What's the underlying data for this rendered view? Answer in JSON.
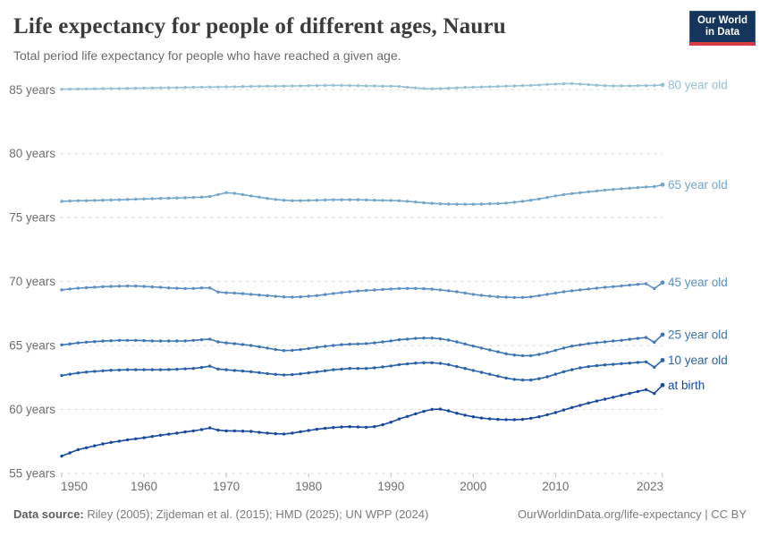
{
  "header": {
    "title": "Life expectancy for people of different ages, Nauru",
    "subtitle": "Total period life expectancy for people who have reached a given age.",
    "logo": {
      "line1": "Our World",
      "line2": "in Data",
      "bg_color": "#16355c",
      "accent_color": "#d93b43"
    }
  },
  "footer": {
    "data_source_label": "Data source:",
    "data_source_text": " Riley (2005); Zijdeman et al. (2015); HMD (2025); UN WPP (2024)",
    "link_text": "OurWorldinData.org/life-expectancy | CC BY"
  },
  "chart_data": {
    "type": "line",
    "title": "Life expectancy for people of different ages, Nauru",
    "subtitle": "Total period life expectancy for people who have reached a given age.",
    "unit": "years",
    "xlabel": "",
    "ylabel": "",
    "x_range": [
      1950,
      2023
    ],
    "ylim": [
      55,
      86
    ],
    "grid": true,
    "legend_position": "right-of-line-ends",
    "x_ticks": [
      1950,
      1960,
      1970,
      1980,
      1990,
      2000,
      2010,
      2023
    ],
    "y_ticks": [
      55,
      60,
      65,
      70,
      75,
      80,
      85
    ],
    "y_tick_suffix": " years",
    "x": [
      1950,
      1951,
      1952,
      1953,
      1954,
      1955,
      1956,
      1957,
      1958,
      1959,
      1960,
      1961,
      1962,
      1963,
      1964,
      1965,
      1966,
      1967,
      1968,
      1969,
      1970,
      1971,
      1972,
      1973,
      1974,
      1975,
      1976,
      1977,
      1978,
      1979,
      1980,
      1981,
      1982,
      1983,
      1984,
      1985,
      1986,
      1987,
      1988,
      1989,
      1990,
      1991,
      1992,
      1993,
      1994,
      1995,
      1996,
      1997,
      1998,
      1999,
      2000,
      2001,
      2002,
      2003,
      2004,
      2005,
      2006,
      2007,
      2008,
      2009,
      2010,
      2011,
      2012,
      2013,
      2014,
      2015,
      2016,
      2017,
      2018,
      2019,
      2020,
      2021,
      2022,
      2023
    ],
    "series": [
      {
        "name": "80 year old",
        "color": "#97c0d4",
        "values": [
          85.04,
          85.05,
          85.06,
          85.07,
          85.08,
          85.09,
          85.1,
          85.1,
          85.11,
          85.12,
          85.13,
          85.14,
          85.15,
          85.16,
          85.17,
          85.18,
          85.19,
          85.2,
          85.21,
          85.22,
          85.23,
          85.24,
          85.25,
          85.26,
          85.27,
          85.28,
          85.28,
          85.29,
          85.3,
          85.31,
          85.32,
          85.33,
          85.34,
          85.35,
          85.34,
          85.33,
          85.32,
          85.3,
          85.3,
          85.28,
          85.28,
          85.26,
          85.2,
          85.15,
          85.1,
          85.08,
          85.1,
          85.12,
          85.15,
          85.18,
          85.2,
          85.22,
          85.24,
          85.26,
          85.28,
          85.3,
          85.32,
          85.34,
          85.38,
          85.42,
          85.45,
          85.47,
          85.48,
          85.45,
          85.4,
          85.36,
          85.32,
          85.3,
          85.3,
          85.31,
          85.32,
          85.33,
          85.34,
          85.38
        ]
      },
      {
        "name": "65 year old",
        "color": "#74a6cc",
        "values": [
          76.28,
          76.3,
          76.32,
          76.33,
          76.35,
          76.36,
          76.38,
          76.4,
          76.42,
          76.44,
          76.46,
          76.48,
          76.5,
          76.52,
          76.54,
          76.55,
          76.58,
          76.6,
          76.65,
          76.8,
          76.95,
          76.9,
          76.8,
          76.7,
          76.6,
          76.5,
          76.42,
          76.36,
          76.33,
          76.33,
          76.35,
          76.36,
          76.38,
          76.4,
          76.4,
          76.4,
          76.4,
          76.38,
          76.36,
          76.35,
          76.34,
          76.32,
          76.28,
          76.22,
          76.16,
          76.12,
          76.08,
          76.06,
          76.05,
          76.05,
          76.05,
          76.06,
          76.08,
          76.1,
          76.14,
          76.2,
          76.28,
          76.36,
          76.46,
          76.58,
          76.7,
          76.8,
          76.88,
          76.95,
          77.02,
          77.08,
          77.15,
          77.2,
          77.26,
          77.3,
          77.35,
          77.4,
          77.42,
          77.58
        ]
      },
      {
        "name": "45 year old",
        "color": "#5a8ec3",
        "values": [
          69.35,
          69.42,
          69.48,
          69.52,
          69.56,
          69.6,
          69.62,
          69.64,
          69.65,
          69.65,
          69.62,
          69.58,
          69.55,
          69.5,
          69.47,
          69.45,
          69.46,
          69.5,
          69.5,
          69.18,
          69.12,
          69.1,
          69.05,
          69.0,
          68.95,
          68.9,
          68.84,
          68.8,
          68.78,
          68.8,
          68.85,
          68.9,
          68.98,
          69.06,
          69.14,
          69.2,
          69.26,
          69.3,
          69.34,
          69.38,
          69.42,
          69.45,
          69.46,
          69.46,
          69.44,
          69.4,
          69.35,
          69.28,
          69.2,
          69.1,
          69.0,
          68.92,
          68.86,
          68.8,
          68.77,
          68.75,
          68.76,
          68.8,
          68.9,
          69.0,
          69.1,
          69.2,
          69.28,
          69.35,
          69.42,
          69.48,
          69.55,
          69.6,
          69.66,
          69.72,
          69.78,
          69.82,
          69.45,
          69.92
        ]
      },
      {
        "name": "25 year old",
        "color": "#3d75b4",
        "values": [
          65.05,
          65.12,
          65.2,
          65.26,
          65.3,
          65.34,
          65.37,
          65.4,
          65.4,
          65.4,
          65.38,
          65.36,
          65.35,
          65.35,
          65.35,
          65.36,
          65.4,
          65.45,
          65.5,
          65.28,
          65.2,
          65.15,
          65.08,
          65.0,
          64.9,
          64.8,
          64.68,
          64.6,
          64.62,
          64.68,
          64.76,
          64.85,
          64.93,
          65.0,
          65.06,
          65.1,
          65.12,
          65.15,
          65.2,
          65.28,
          65.36,
          65.45,
          65.5,
          65.55,
          65.58,
          65.58,
          65.52,
          65.42,
          65.28,
          65.12,
          64.95,
          64.8,
          64.65,
          64.5,
          64.35,
          64.25,
          64.2,
          64.2,
          64.3,
          64.45,
          64.62,
          64.8,
          64.95,
          65.05,
          65.15,
          65.22,
          65.28,
          65.35,
          65.4,
          65.48,
          65.55,
          65.62,
          65.25,
          65.85
        ]
      },
      {
        "name": "10 year old",
        "color": "#2a61ab",
        "values": [
          62.65,
          62.75,
          62.85,
          62.92,
          62.98,
          63.02,
          63.06,
          63.08,
          63.1,
          63.1,
          63.1,
          63.1,
          63.1,
          63.12,
          63.14,
          63.17,
          63.2,
          63.28,
          63.38,
          63.15,
          63.1,
          63.05,
          63.0,
          62.95,
          62.88,
          62.8,
          62.74,
          62.7,
          62.72,
          62.78,
          62.86,
          62.94,
          63.02,
          63.1,
          63.15,
          63.2,
          63.2,
          63.2,
          63.25,
          63.32,
          63.4,
          63.5,
          63.56,
          63.62,
          63.65,
          63.65,
          63.6,
          63.5,
          63.35,
          63.2,
          63.05,
          62.9,
          62.75,
          62.6,
          62.45,
          62.35,
          62.3,
          62.3,
          62.4,
          62.55,
          62.75,
          62.95,
          63.1,
          63.25,
          63.35,
          63.42,
          63.48,
          63.52,
          63.58,
          63.62,
          63.68,
          63.72,
          63.3,
          63.85
        ]
      },
      {
        "name": "at birth",
        "color": "#19499e",
        "values": [
          56.35,
          56.6,
          56.85,
          57.0,
          57.15,
          57.3,
          57.42,
          57.52,
          57.62,
          57.7,
          57.78,
          57.88,
          57.98,
          58.06,
          58.14,
          58.24,
          58.32,
          58.42,
          58.55,
          58.38,
          58.32,
          58.32,
          58.3,
          58.28,
          58.2,
          58.15,
          58.1,
          58.08,
          58.15,
          58.25,
          58.35,
          58.45,
          58.52,
          58.58,
          58.62,
          58.65,
          58.62,
          58.6,
          58.65,
          58.8,
          59.0,
          59.25,
          59.45,
          59.65,
          59.85,
          60.0,
          60.02,
          59.88,
          59.7,
          59.55,
          59.42,
          59.32,
          59.26,
          59.22,
          59.2,
          59.2,
          59.22,
          59.3,
          59.42,
          59.58,
          59.75,
          59.95,
          60.15,
          60.32,
          60.5,
          60.65,
          60.8,
          60.95,
          61.1,
          61.25,
          61.4,
          61.55,
          61.25,
          61.9
        ]
      }
    ],
    "colors": {
      "gridline": "#dedede",
      "axis_text": "#6e6e6e",
      "tick_mark": "#bbbbbb"
    }
  }
}
